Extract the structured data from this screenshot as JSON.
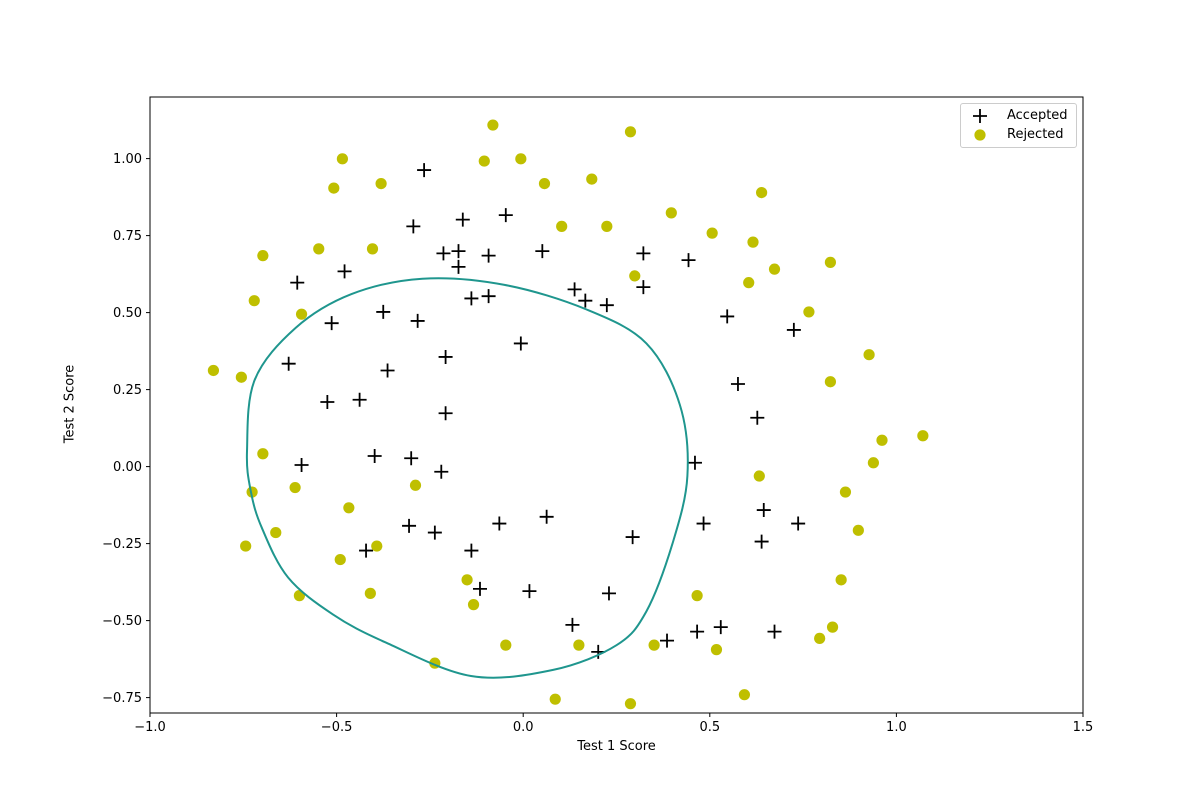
{
  "figure": {
    "background_color": "#ffffff",
    "axes_background_color": "#ffffff",
    "spine_color": "#000000"
  },
  "legend": {
    "position": "upper right",
    "border_color": "#cccccc",
    "entries": [
      {
        "label": "Accepted",
        "marker": "plus",
        "color": "#000000"
      },
      {
        "label": "Rejected",
        "marker": "circle",
        "color": "#bfbf00"
      }
    ]
  },
  "chart_data": {
    "type": "scatter",
    "title": "",
    "xlabel": "Test 1 Score",
    "ylabel": "Test 2 Score",
    "xlim": [
      -1.0,
      1.5
    ],
    "ylim": [
      -0.8,
      1.2
    ],
    "grid": false,
    "legend_position": "upper right",
    "x_ticks": {
      "values": [
        -1.0,
        -0.5,
        0.0,
        0.5,
        1.0,
        1.5
      ],
      "labels": [
        "−1.0",
        "−0.5",
        "0.0",
        "0.5",
        "1.0",
        "1.5"
      ]
    },
    "y_ticks": {
      "values": [
        -0.75,
        -0.5,
        -0.25,
        0.0,
        0.25,
        0.5,
        0.75,
        1.0
      ],
      "labels": [
        "−0.75",
        "−0.50",
        "−0.25",
        "0.00",
        "0.25",
        "0.50",
        "0.75",
        "1.00"
      ]
    },
    "series": [
      {
        "name": "Accepted",
        "marker": "plus",
        "color": "#000000",
        "points": [
          [
            0.051267,
            0.69956
          ],
          [
            -0.092742,
            0.68494
          ],
          [
            -0.21371,
            0.69225
          ],
          [
            -0.375,
            0.50219
          ],
          [
            -0.51325,
            0.46564
          ],
          [
            -0.52477,
            0.2098
          ],
          [
            -0.39804,
            0.034357
          ],
          [
            -0.30588,
            -0.19225
          ],
          [
            0.016705,
            -0.40424
          ],
          [
            0.13191,
            -0.51389
          ],
          [
            0.38537,
            -0.56506
          ],
          [
            0.52938,
            -0.5212
          ],
          [
            0.63882,
            -0.24342
          ],
          [
            0.73675,
            -0.18494
          ],
          [
            0.54666,
            0.48757
          ],
          [
            0.322,
            0.5826
          ],
          [
            0.16647,
            0.53874
          ],
          [
            -0.046659,
            0.81652
          ],
          [
            -0.17339,
            0.69956
          ],
          [
            -0.47869,
            0.63377
          ],
          [
            -0.60541,
            0.59722
          ],
          [
            -0.62846,
            0.33406
          ],
          [
            -0.59389,
            0.005117
          ],
          [
            -0.42108,
            -0.27266
          ],
          [
            -0.11578,
            -0.39693
          ],
          [
            0.20104,
            -0.60161
          ],
          [
            0.46601,
            -0.53582
          ],
          [
            0.67339,
            -0.53582
          ],
          [
            -0.13882,
            0.54605
          ],
          [
            -0.29435,
            0.77997
          ],
          [
            -0.26555,
            0.96272
          ],
          [
            -0.16187,
            0.8019
          ],
          [
            -0.17339,
            0.64839
          ],
          [
            -0.28283,
            0.47295
          ],
          [
            -0.36348,
            0.31213
          ],
          [
            -0.30012,
            0.027047
          ],
          [
            -0.23675,
            -0.21418
          ],
          [
            -0.06394,
            -0.18494
          ],
          [
            0.062788,
            -0.16301
          ],
          [
            0.22984,
            -0.41155
          ],
          [
            0.2932,
            -0.2288
          ],
          [
            0.48329,
            -0.18494
          ],
          [
            0.64459,
            -0.14108
          ],
          [
            0.46025,
            0.012427
          ],
          [
            0.6273,
            0.15863
          ],
          [
            0.57546,
            0.26827
          ],
          [
            0.72523,
            0.44371
          ],
          [
            0.22408,
            0.52412
          ],
          [
            0.44297,
            0.67032
          ],
          [
            0.322,
            0.69225
          ],
          [
            0.13767,
            0.57529
          ],
          [
            -0.0063364,
            0.39985
          ],
          [
            -0.092742,
            0.55336
          ],
          [
            -0.20795,
            0.35599
          ],
          [
            -0.20795,
            0.17325
          ],
          [
            -0.43836,
            0.21711
          ],
          [
            -0.21947,
            -0.016813
          ],
          [
            -0.13882,
            -0.27266
          ]
        ]
      },
      {
        "name": "Rejected",
        "marker": "circle",
        "color": "#bfbf00",
        "points": [
          [
            0.18376,
            0.93348
          ],
          [
            0.22408,
            0.77997
          ],
          [
            0.29896,
            0.61915
          ],
          [
            0.50634,
            0.75804
          ],
          [
            0.61578,
            0.7288
          ],
          [
            0.60426,
            0.59722
          ],
          [
            0.76555,
            0.50219
          ],
          [
            0.92684,
            0.3633
          ],
          [
            0.82316,
            0.27558
          ],
          [
            0.96141,
            0.085526
          ],
          [
            0.93836,
            0.012427
          ],
          [
            0.86348,
            -0.082602
          ],
          [
            0.89804,
            -0.20687
          ],
          [
            0.85196,
            -0.36769
          ],
          [
            0.82892,
            -0.5212
          ],
          [
            0.79435,
            -0.55775
          ],
          [
            0.59274,
            -0.7405
          ],
          [
            0.51786,
            -0.5943
          ],
          [
            0.46601,
            -0.41886
          ],
          [
            0.35081,
            -0.57968
          ],
          [
            0.28744,
            -0.76974
          ],
          [
            0.085829,
            -0.75512
          ],
          [
            0.14919,
            -0.57968
          ],
          [
            -0.13306,
            -0.4481
          ],
          [
            -0.40956,
            -0.41155
          ],
          [
            -0.39228,
            -0.25804
          ],
          [
            -0.74366,
            -0.25804
          ],
          [
            -0.69758,
            0.041667
          ],
          [
            -0.75518,
            0.2902
          ],
          [
            -0.69758,
            0.68494
          ],
          [
            -0.4038,
            0.70687
          ],
          [
            -0.38076,
            0.91886
          ],
          [
            -0.50749,
            0.90424
          ],
          [
            -0.54781,
            0.70687
          ],
          [
            0.10311,
            0.77997
          ],
          [
            0.057028,
            0.91886
          ],
          [
            -0.10426,
            0.99196
          ],
          [
            -0.081221,
            1.1089
          ],
          [
            0.28744,
            1.087
          ],
          [
            0.39689,
            0.82383
          ],
          [
            0.63882,
            0.88962
          ],
          [
            0.82316,
            0.66301
          ],
          [
            0.67339,
            0.64108
          ],
          [
            1.0709,
            0.10015
          ],
          [
            -0.046659,
            -0.57968
          ],
          [
            -0.23675,
            -0.63816
          ],
          [
            -0.15035,
            -0.36769
          ],
          [
            -0.49021,
            -0.3019
          ],
          [
            -0.46717,
            -0.13377
          ],
          [
            -0.28859,
            -0.060673
          ],
          [
            -0.61118,
            -0.067982
          ],
          [
            -0.66302,
            -0.21418
          ],
          [
            -0.59965,
            -0.41886
          ],
          [
            -0.72638,
            -0.082602
          ],
          [
            -0.83007,
            0.31213
          ],
          [
            -0.72062,
            0.53874
          ],
          [
            -0.59389,
            0.49488
          ],
          [
            -0.48445,
            0.99927
          ],
          [
            -0.0063364,
            0.99927
          ],
          [
            0.63265,
            -0.030612
          ]
        ]
      }
    ],
    "decision_boundary": {
      "name": "Decision boundary",
      "color": "#1f968e",
      "line_width": 2,
      "closed": true,
      "points": [
        [
          -0.27,
          0.61
        ],
        [
          -0.05,
          0.59
        ],
        [
          0.17,
          0.51
        ],
        [
          0.33,
          0.4
        ],
        [
          0.42,
          0.2
        ],
        [
          0.44,
          -0.03
        ],
        [
          0.4,
          -0.25
        ],
        [
          0.33,
          -0.47
        ],
        [
          0.25,
          -0.58
        ],
        [
          0.08,
          -0.66
        ],
        [
          -0.14,
          -0.68
        ],
        [
          -0.37,
          -0.57
        ],
        [
          -0.51,
          -0.48
        ],
        [
          -0.63,
          -0.36
        ],
        [
          -0.7,
          -0.2
        ],
        [
          -0.73,
          -0.08
        ],
        [
          -0.74,
          0.05
        ],
        [
          -0.72,
          0.28
        ],
        [
          -0.61,
          0.45
        ],
        [
          -0.46,
          0.56
        ]
      ]
    }
  }
}
